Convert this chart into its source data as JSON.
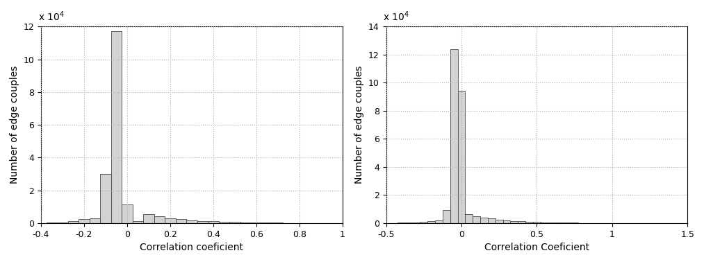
{
  "left": {
    "xlabel": "Correlation coeficient",
    "ylabel": "Number of edge couples",
    "xlim": [
      -0.4,
      1.0
    ],
    "ylim": [
      0,
      120000
    ],
    "yticks": [
      0,
      20000,
      40000,
      60000,
      80000,
      100000,
      120000
    ],
    "xticks": [
      -0.4,
      -0.2,
      0.0,
      0.2,
      0.4,
      0.6,
      0.8,
      1.0
    ],
    "xticklabels": [
      "-0.4",
      "-0.2",
      "0",
      "0.2",
      "0.4",
      "0.6",
      "0.8",
      "1"
    ],
    "bar_centers": [
      -0.35,
      -0.3,
      -0.25,
      -0.2,
      -0.15,
      -0.1,
      -0.05,
      0.0,
      0.05,
      0.1,
      0.15,
      0.2,
      0.25,
      0.3,
      0.35,
      0.4,
      0.45,
      0.5,
      0.55,
      0.6,
      0.65,
      0.7,
      0.75,
      0.8,
      0.85,
      0.9,
      0.95
    ],
    "bar_heights": [
      200,
      500,
      1200,
      2500,
      3100,
      30000,
      117000,
      11500,
      1100,
      5500,
      4000,
      3000,
      2300,
      1800,
      1400,
      1100,
      900,
      700,
      500,
      350,
      250,
      150,
      100,
      50,
      30,
      20,
      10
    ],
    "bar_width": 0.05,
    "scale_label": "x 10$^4$"
  },
  "right": {
    "xlabel": "Correlation Coeficient",
    "ylabel": "Number of edge couples",
    "xlim": [
      -0.5,
      1.5
    ],
    "ylim": [
      0,
      140000
    ],
    "yticks": [
      0,
      20000,
      40000,
      60000,
      80000,
      100000,
      120000,
      140000
    ],
    "xticks": [
      -0.5,
      0.0,
      0.5,
      1.0,
      1.5
    ],
    "xticklabels": [
      "-0.5",
      "0",
      "0.5",
      "1",
      "1.5"
    ],
    "bar_centers": [
      -0.45,
      -0.4,
      -0.35,
      -0.3,
      -0.25,
      -0.2,
      -0.15,
      -0.1,
      -0.05,
      0.0,
      0.05,
      0.1,
      0.15,
      0.2,
      0.25,
      0.3,
      0.35,
      0.4,
      0.45,
      0.5,
      0.55,
      0.6,
      0.65,
      0.7,
      0.75,
      0.8,
      0.85,
      0.9,
      0.95,
      1.0,
      1.05,
      1.1,
      1.15,
      1.2,
      1.25,
      1.3,
      1.35,
      1.4,
      1.45
    ],
    "bar_heights": [
      100,
      200,
      300,
      500,
      800,
      1200,
      2000,
      9500,
      124000,
      94000,
      6500,
      5000,
      4000,
      3200,
      2500,
      2000,
      1600,
      1300,
      1000,
      800,
      600,
      450,
      350,
      250,
      180,
      130,
      90,
      60,
      40,
      25,
      15,
      10,
      8,
      5,
      3,
      2,
      1,
      1,
      1
    ],
    "bar_width": 0.05,
    "scale_label": "x 10$^4$"
  },
  "bar_color": "#d3d3d3",
  "bar_edgecolor": "#444444",
  "grid_color": "#aaaaaa",
  "grid_linestyle": ":",
  "bg_color": "#ffffff",
  "tick_fontsize": 9,
  "label_fontsize": 10,
  "scale_fontsize": 10
}
